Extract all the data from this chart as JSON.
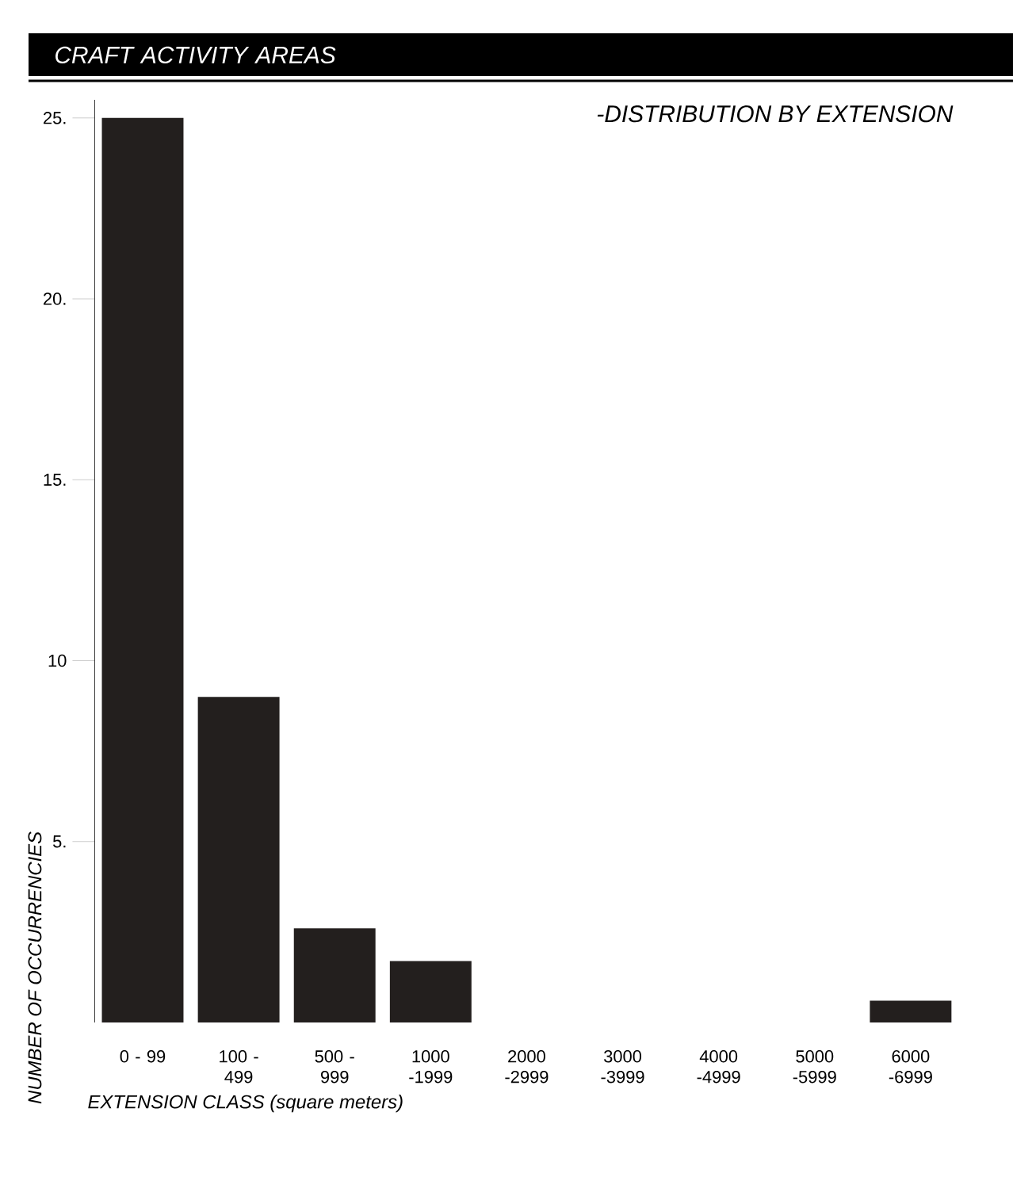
{
  "chart_data": {
    "type": "bar",
    "title": "CRAFT ACTIVITY AREAS",
    "subtitle": "-DISTRIBUTION BY EXTENSION",
    "xlabel": "EXTENSION CLASS (square meters)",
    "ylabel": "NUMBER OF OCCURRENCIES",
    "categories": [
      "0 - 99",
      "100 - 499",
      "500 - 999",
      "1000 -1999",
      "2000 -2999",
      "3000 -3999",
      "4000 -4999",
      "5000 -5999",
      "6000 -6999"
    ],
    "values": [
      25,
      9,
      2.6,
      1.7,
      0,
      0,
      0,
      0,
      0.6
    ],
    "color": "#231f1e",
    "ylim": [
      0,
      25.5
    ],
    "yticks": [
      {
        "value": 5,
        "label": "5."
      },
      {
        "value": 10,
        "label": "10"
      },
      {
        "value": 15,
        "label": "15."
      },
      {
        "value": 20,
        "label": "20."
      },
      {
        "value": 25,
        "label": "25."
      }
    ]
  }
}
